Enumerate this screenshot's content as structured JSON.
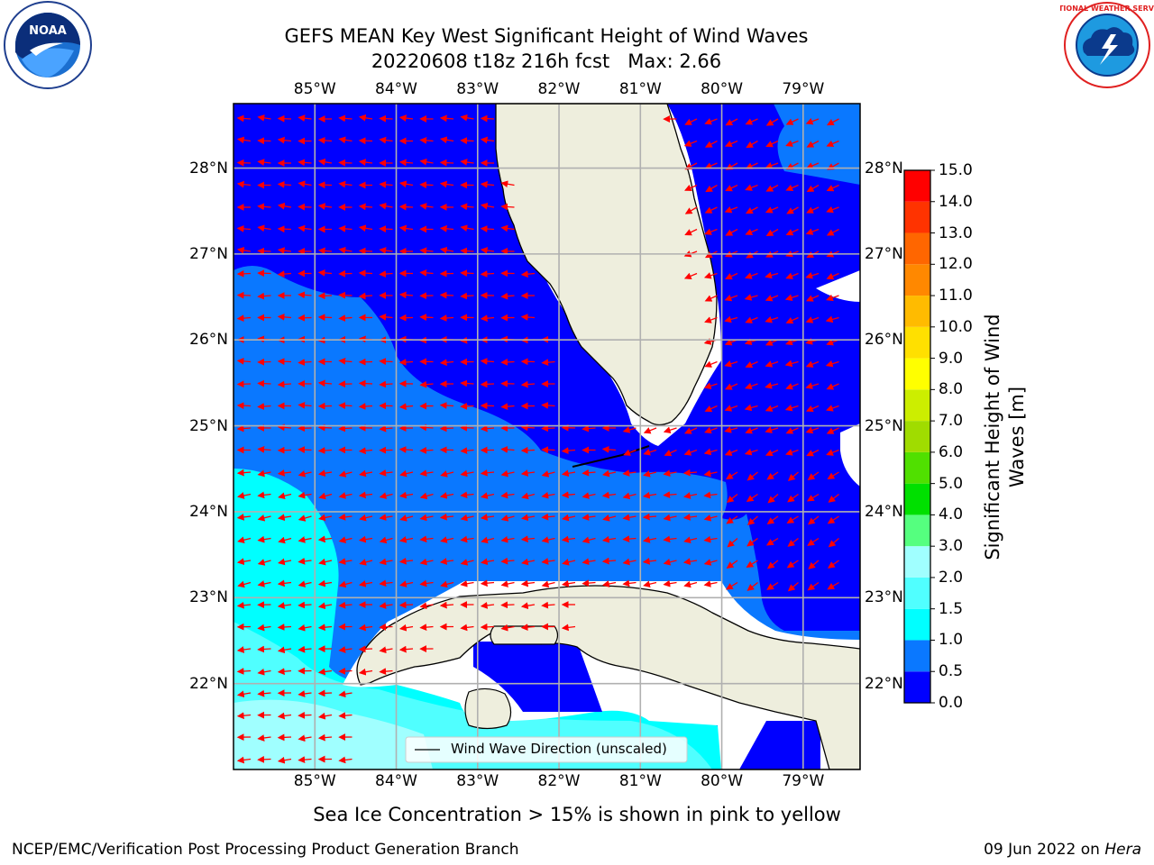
{
  "title": {
    "line1": "GEFS MEAN Key West Significant Height of Wind Waves",
    "line2": "20220608 t18z 216h fcst   Max: 2.66"
  },
  "logos": {
    "noaa": {
      "text": "NOAA",
      "ring_text": "NATIONAL OCEANIC AND ATMOSPHERIC ADMINISTRATION · U.S. DEPARTMENT OF COMMERCE"
    },
    "nws": {
      "ring_text": "NATIONAL WEATHER SERVICE"
    }
  },
  "map": {
    "lon_ticks": [
      "85°W",
      "84°W",
      "83°W",
      "82°W",
      "81°W",
      "80°W",
      "79°W"
    ],
    "lat_ticks": [
      "28°N",
      "27°N",
      "26°N",
      "25°N",
      "24°N",
      "23°N",
      "22°N"
    ],
    "lon_values": [
      -85,
      -84,
      -83,
      -82,
      -81,
      -80,
      -79
    ],
    "lat_values": [
      28,
      27,
      26,
      25,
      24,
      23,
      22
    ],
    "extent": {
      "lon_min": -86,
      "lon_max": -78.3,
      "lat_min": 21,
      "lat_max": 28.75
    },
    "legend_label": "Wind Wave Direction (unscaled)",
    "arrow_color": "#ff0000",
    "land_color": "#eeeedd"
  },
  "colorbar": {
    "label": "Significant Height of Wind Waves [m]",
    "ticks": [
      "0.0",
      "0.5",
      "1.0",
      "1.5",
      "2.0",
      "3.0",
      "4.0",
      "5.0",
      "6.0",
      "7.0",
      "8.0",
      "9.0",
      "10.0",
      "11.0",
      "12.0",
      "13.0",
      "14.0",
      "15.0"
    ],
    "colors": [
      "#0000ff",
      "#0a78ff",
      "#00ffff",
      "#50ffff",
      "#a0ffff",
      "#55ff7f",
      "#00e000",
      "#50e000",
      "#a0dc00",
      "#ccee00",
      "#ffff00",
      "#ffe000",
      "#ffbb00",
      "#ff8800",
      "#ff6600",
      "#ff3300",
      "#ff0000"
    ]
  },
  "footer": {
    "sea_ice_note": "Sea Ice Concentration > 15% is shown in pink to yellow",
    "left": "NCEP/EMC/Verification Post Processing Product Generation Branch",
    "right_date": "09 Jun 2022 on ",
    "right_host": "Hera"
  }
}
